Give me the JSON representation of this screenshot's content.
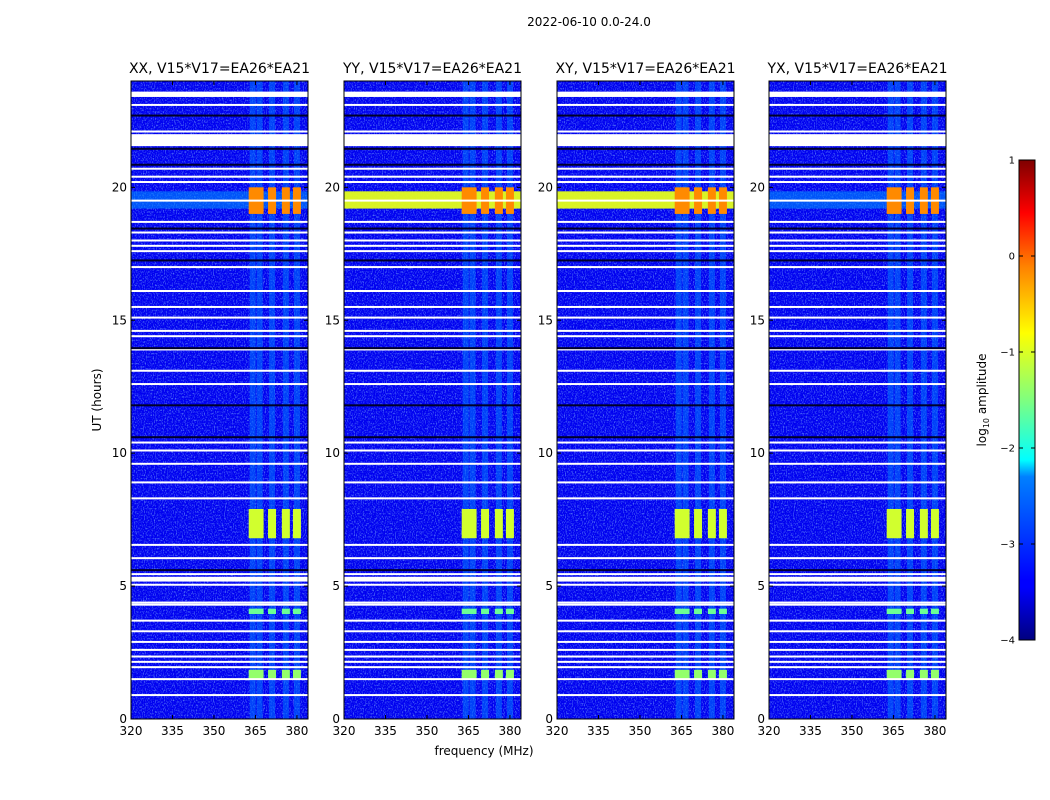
{
  "figure_title": "2022-06-10 0.0-24.0",
  "chart_data": {
    "type": "heatmap",
    "title": "2022-06-10 0.0-24.0",
    "xlabel": "frequency (MHz)",
    "ylabel": "UT (hours)",
    "xlim": [
      320,
      384
    ],
    "ylim": [
      0,
      24
    ],
    "xticks": [
      320,
      335,
      350,
      365,
      380
    ],
    "yticks": [
      0,
      5,
      10,
      15,
      20
    ],
    "panels": [
      {
        "title": "XX, V15*V17=EA26*EA21",
        "strong_band": false
      },
      {
        "title": "YY, V15*V17=EA26*EA21",
        "strong_band": true
      },
      {
        "title": "XY, V15*V17=EA26*EA21",
        "strong_band": true
      },
      {
        "title": "YX, V15*V17=EA26*EA21",
        "strong_band": false
      }
    ],
    "colorbar": {
      "label": "log10 amplitude",
      "vmin": -4,
      "vmax": 1,
      "ticks": [
        -4,
        -3,
        -2,
        -1,
        0,
        1
      ],
      "tick_labels": [
        "−4",
        "−3",
        "−2",
        "−1",
        "0",
        "1"
      ],
      "colormap": "jet"
    },
    "gap_hours": [
      0.9,
      1.5,
      1.95,
      2.15,
      2.35,
      2.6,
      2.9,
      3.3,
      3.7,
      4.3,
      4.38,
      5.05,
      5.3,
      5.45,
      6.05,
      6.55,
      8.3,
      8.9,
      9.6,
      10.1,
      10.4,
      12.6,
      13.1,
      13.9,
      14.4,
      14.6,
      15.1,
      15.5,
      16.1,
      17.0,
      17.6,
      17.8,
      18.0,
      18.3,
      18.7,
      19.5,
      20.2,
      20.4,
      20.7,
      22.1,
      23.1,
      23.55
    ],
    "dark_hours": [
      5.6,
      10.6,
      11.8,
      13.95,
      17.25,
      18.45,
      20.85,
      21.45,
      22.7
    ],
    "white_bands": [
      [
        21.55,
        22.0
      ],
      [
        23.4,
        23.6
      ],
      [
        5.17,
        5.35
      ]
    ],
    "rfi_channels_mhz": [
      364,
      366.5,
      371,
      376,
      380
    ],
    "rfi_bursts": [
      {
        "hours": [
          1.5,
          1.85
        ],
        "level": -1.4
      },
      {
        "hours": [
          3.95,
          4.15
        ],
        "level": -1.6
      },
      {
        "hours": [
          6.8,
          7.9
        ],
        "level": -1.1
      },
      {
        "hours": [
          19.0,
          20.0
        ],
        "level": -0.3
      }
    ],
    "broadband_band": {
      "hours": [
        19.2,
        19.85
      ],
      "level": -1.0
    }
  }
}
